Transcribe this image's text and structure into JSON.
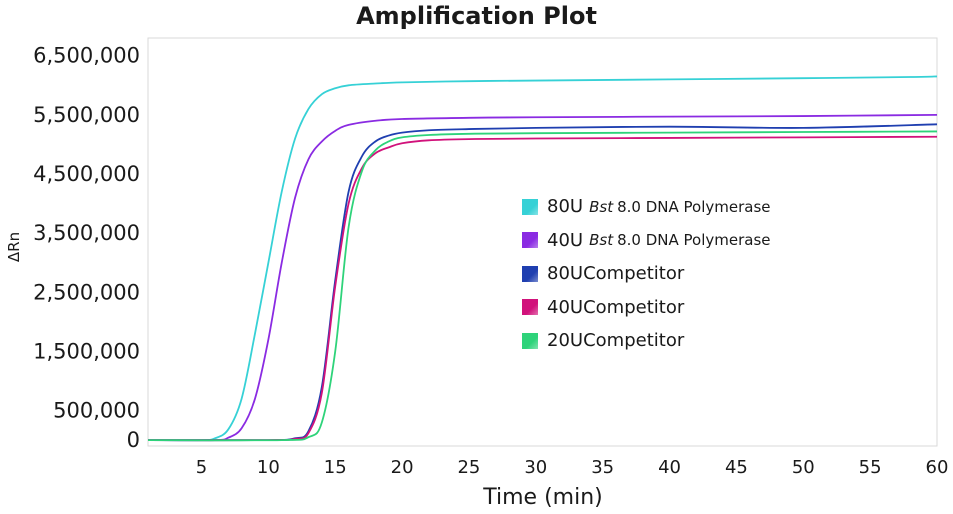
{
  "chart_data": {
    "type": "line",
    "title": "Amplification Plot",
    "xlabel": "Time (min)",
    "ylabel": "ΔRn",
    "xlim": [
      1,
      60
    ],
    "ylim": [
      -100000,
      6800000
    ],
    "x_ticks": [
      5,
      10,
      15,
      20,
      25,
      30,
      35,
      40,
      45,
      50,
      55,
      60
    ],
    "y_ticks": [
      0,
      500000,
      1500000,
      2500000,
      3500000,
      4500000,
      5500000,
      6500000
    ],
    "y_tick_labels": [
      "0",
      "500,000",
      "1,500,000",
      "2,500,000",
      "3,500,000",
      "4,500,000",
      "5,500,000",
      "6,500,000"
    ],
    "grid": false,
    "legend_position": "center-right",
    "series": [
      {
        "name": "80U Bst 8.0 DNA Polymerase",
        "legend": {
          "size": "80U",
          "italic": "Bst",
          "rest": "8.0 DNA Polymerase"
        },
        "color": "#36d1d6",
        "x": [
          1,
          5,
          6,
          7,
          8,
          9,
          10,
          11,
          12,
          13,
          14,
          15,
          16,
          18,
          20,
          25,
          30,
          40,
          50,
          58,
          60
        ],
        "y": [
          0,
          0,
          30000,
          180000,
          700000,
          1800000,
          3000000,
          4200000,
          5100000,
          5600000,
          5850000,
          5950000,
          6000000,
          6030000,
          6050000,
          6070000,
          6080000,
          6100000,
          6120000,
          6140000,
          6150000
        ]
      },
      {
        "name": "40U Bst 8.0 DNA Polymerase",
        "legend": {
          "size": "40U",
          "italic": "Bst",
          "rest": "8.0 DNA Polymerase"
        },
        "color": "#8a2be2",
        "x": [
          1,
          6,
          7,
          8,
          9,
          10,
          11,
          12,
          13,
          14,
          15,
          16,
          18,
          20,
          25,
          30,
          40,
          50,
          60
        ],
        "y": [
          0,
          0,
          40000,
          200000,
          700000,
          1700000,
          3000000,
          4100000,
          4750000,
          5050000,
          5230000,
          5330000,
          5400000,
          5430000,
          5450000,
          5460000,
          5470000,
          5480000,
          5500000
        ]
      },
      {
        "name": "80U Competitor",
        "legend": {
          "size": "80U",
          "rest": "Competitor"
        },
        "color": "#1f3fb0",
        "x": [
          1,
          10,
          12,
          13,
          14,
          15,
          16,
          17,
          18,
          19,
          20,
          22,
          25,
          30,
          40,
          50,
          60
        ],
        "y": [
          0,
          0,
          30000,
          150000,
          900000,
          2700000,
          4200000,
          4800000,
          5050000,
          5150000,
          5200000,
          5240000,
          5260000,
          5280000,
          5300000,
          5280000,
          5340000
        ]
      },
      {
        "name": "40U Competitor",
        "legend": {
          "size": "40U",
          "rest": "Competitor"
        },
        "color": "#d1127b",
        "x": [
          1,
          10,
          12,
          13,
          14,
          15,
          16,
          17,
          18,
          19,
          20,
          22,
          25,
          30,
          40,
          50,
          60
        ],
        "y": [
          0,
          0,
          20000,
          120000,
          800000,
          2600000,
          4000000,
          4600000,
          4850000,
          4950000,
          5020000,
          5070000,
          5090000,
          5100000,
          5110000,
          5120000,
          5130000
        ]
      },
      {
        "name": "20U Competitor",
        "legend": {
          "size": "20U",
          "rest": "Competitor"
        },
        "color": "#2ed37a",
        "x": [
          1,
          11,
          13,
          14,
          15,
          16,
          17,
          18,
          19,
          20,
          22,
          25,
          30,
          40,
          50,
          60
        ],
        "y": [
          0,
          0,
          50000,
          300000,
          1500000,
          3600000,
          4550000,
          4900000,
          5050000,
          5120000,
          5160000,
          5180000,
          5190000,
          5200000,
          5210000,
          5220000
        ]
      }
    ]
  }
}
